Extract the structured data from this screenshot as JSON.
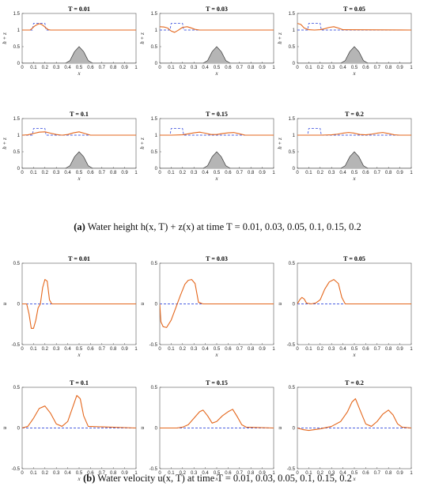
{
  "captions": {
    "a": {
      "label": "(a)",
      "text": "Water height h(x, T) + z(x) at time T = 0.01, 0.03, 0.05, 0.1, 0.15, 0.2"
    },
    "b": {
      "label": "(b)",
      "text": "Water velocity u(x, T) at time T = 0.01, 0.03, 0.05, 0.1, 0.15, 0.2"
    }
  },
  "colors": {
    "solution": "#e4661b",
    "initial": "#4b5fe0",
    "bathymetry_fill": "#b5b5b5",
    "bathymetry_edge": "#333333"
  },
  "chart_data": [
    {
      "type": "line",
      "group": "a",
      "title": "T = 0.01",
      "xlabel": "x",
      "ylabel": "h + z",
      "xlim": [
        0,
        1
      ],
      "ylim": [
        0,
        1.5
      ],
      "xticks": [
        "0",
        "0.1",
        "0.2",
        "0.3",
        "0.4",
        "0.5",
        "0.6",
        "0.7",
        "0.8",
        "0.9",
        "1"
      ],
      "yticks": [
        "0",
        "0.5",
        "1",
        "1.5"
      ],
      "series": [
        {
          "style": "dashed",
          "color": "#4b5fe0",
          "x": [
            0,
            0.09,
            0.1,
            0.2,
            0.21,
            1
          ],
          "y": [
            1,
            1,
            1.2,
            1.2,
            1,
            1
          ]
        },
        {
          "style": "solid",
          "color": "#e4661b",
          "x": [
            0,
            0.07,
            0.09,
            0.11,
            0.13,
            0.15,
            0.17,
            0.19,
            0.21,
            0.23,
            0.25,
            1
          ],
          "y": [
            1,
            1,
            1.06,
            1.12,
            1.16,
            1.19,
            1.17,
            1.12,
            1.06,
            1.01,
            1,
            1
          ]
        },
        {
          "style": "bathymetry",
          "x": [
            0,
            0.38,
            0.42,
            0.46,
            0.5,
            0.54,
            0.58,
            0.62,
            1
          ],
          "y": [
            0,
            0,
            0.08,
            0.35,
            0.5,
            0.35,
            0.08,
            0,
            0
          ]
        }
      ]
    },
    {
      "type": "line",
      "group": "a",
      "title": "T = 0.03",
      "xlabel": "x",
      "ylabel": "h + z",
      "xlim": [
        0,
        1
      ],
      "ylim": [
        0,
        1.5
      ],
      "xticks": [
        "0",
        "0.1",
        "0.2",
        "0.3",
        "0.4",
        "0.5",
        "0.6",
        "0.7",
        "0.8",
        "0.9",
        "1"
      ],
      "yticks": [
        "0",
        "0.5",
        "1",
        "1.5"
      ],
      "series": [
        {
          "style": "dashed",
          "color": "#4b5fe0",
          "x": [
            0,
            0.09,
            0.1,
            0.2,
            0.21,
            1
          ],
          "y": [
            1,
            1,
            1.2,
            1.2,
            1,
            1
          ]
        },
        {
          "style": "solid",
          "color": "#e4661b",
          "x": [
            0,
            0.04,
            0.07,
            0.1,
            0.13,
            0.16,
            0.2,
            0.24,
            0.27,
            0.31,
            0.35,
            1
          ],
          "y": [
            1.1,
            1.09,
            1.06,
            0.97,
            0.93,
            0.99,
            1.08,
            1.1,
            1.07,
            1.02,
            1,
            1
          ]
        },
        {
          "style": "bathymetry",
          "x": [
            0,
            0.38,
            0.42,
            0.46,
            0.5,
            0.54,
            0.58,
            0.62,
            1
          ],
          "y": [
            0,
            0,
            0.08,
            0.35,
            0.5,
            0.35,
            0.08,
            0,
            0
          ]
        }
      ]
    },
    {
      "type": "line",
      "group": "a",
      "title": "T = 0.05",
      "xlabel": "x",
      "ylabel": "h + z",
      "xlim": [
        0,
        1
      ],
      "ylim": [
        0,
        1.5
      ],
      "xticks": [
        "0",
        "0.1",
        "0.2",
        "0.3",
        "0.4",
        "0.5",
        "0.6",
        "0.7",
        "0.8",
        "0.9",
        "1"
      ],
      "yticks": [
        "0",
        "0.5",
        "1",
        "1.5"
      ],
      "series": [
        {
          "style": "dashed",
          "color": "#4b5fe0",
          "x": [
            0,
            0.09,
            0.1,
            0.2,
            0.21,
            1
          ],
          "y": [
            1,
            1,
            1.2,
            1.2,
            1,
            1
          ]
        },
        {
          "style": "solid",
          "color": "#e4661b",
          "x": [
            0,
            0.03,
            0.06,
            0.1,
            0.15,
            0.2,
            0.24,
            0.28,
            0.32,
            0.36,
            0.4,
            1
          ],
          "y": [
            1.2,
            1.17,
            1.06,
            1.01,
            1,
            1.01,
            1.04,
            1.08,
            1.1,
            1.06,
            1.01,
            1
          ]
        },
        {
          "style": "bathymetry",
          "x": [
            0,
            0.38,
            0.42,
            0.46,
            0.5,
            0.54,
            0.58,
            0.62,
            1
          ],
          "y": [
            0,
            0,
            0.08,
            0.35,
            0.5,
            0.35,
            0.08,
            0,
            0
          ]
        }
      ]
    },
    {
      "type": "line",
      "group": "a",
      "title": "T = 0.1",
      "xlabel": "x",
      "ylabel": "h + z",
      "xlim": [
        0,
        1
      ],
      "ylim": [
        0,
        1.5
      ],
      "xticks": [
        "0",
        "0.1",
        "0.2",
        "0.3",
        "0.4",
        "0.5",
        "0.6",
        "0.7",
        "0.8",
        "0.9",
        "1"
      ],
      "yticks": [
        "0",
        "0.5",
        "1",
        "1.5"
      ],
      "series": [
        {
          "style": "dashed",
          "color": "#4b5fe0",
          "x": [
            0,
            0.09,
            0.1,
            0.2,
            0.21,
            1
          ],
          "y": [
            1,
            1,
            1.2,
            1.2,
            1,
            1
          ]
        },
        {
          "style": "solid",
          "color": "#e4661b",
          "x": [
            0,
            0.05,
            0.1,
            0.15,
            0.2,
            0.25,
            0.3,
            0.35,
            0.4,
            0.45,
            0.5,
            0.55,
            0.6,
            1
          ],
          "y": [
            1,
            1.01,
            1.05,
            1.09,
            1.1,
            1.06,
            1.02,
            1,
            1.02,
            1.07,
            1.1,
            1.05,
            1,
            1
          ]
        },
        {
          "style": "bathymetry",
          "x": [
            0,
            0.38,
            0.42,
            0.46,
            0.5,
            0.54,
            0.58,
            0.62,
            1
          ],
          "y": [
            0,
            0,
            0.08,
            0.35,
            0.5,
            0.35,
            0.08,
            0,
            0
          ]
        }
      ]
    },
    {
      "type": "line",
      "group": "a",
      "title": "T = 0.15",
      "xlabel": "x",
      "ylabel": "h + z",
      "xlim": [
        0,
        1
      ],
      "ylim": [
        0,
        1.5
      ],
      "xticks": [
        "0",
        "0.1",
        "0.2",
        "0.3",
        "0.4",
        "0.5",
        "0.6",
        "0.7",
        "0.8",
        "0.9",
        "1"
      ],
      "yticks": [
        "0",
        "0.5",
        "1",
        "1.5"
      ],
      "series": [
        {
          "style": "dashed",
          "color": "#4b5fe0",
          "x": [
            0,
            0.09,
            0.1,
            0.2,
            0.21,
            1
          ],
          "y": [
            1,
            1,
            1.2,
            1.2,
            1,
            1
          ]
        },
        {
          "style": "solid",
          "color": "#e4661b",
          "x": [
            0,
            0.1,
            0.2,
            0.25,
            0.3,
            0.35,
            0.4,
            0.45,
            0.5,
            0.55,
            0.6,
            0.65,
            0.7,
            0.75,
            1
          ],
          "y": [
            1,
            1,
            1.01,
            1.04,
            1.07,
            1.09,
            1.06,
            1.02,
            1.02,
            1.05,
            1.07,
            1.08,
            1.04,
            1,
            1
          ]
        },
        {
          "style": "bathymetry",
          "x": [
            0,
            0.38,
            0.42,
            0.46,
            0.5,
            0.54,
            0.58,
            0.62,
            1
          ],
          "y": [
            0,
            0,
            0.08,
            0.35,
            0.5,
            0.35,
            0.08,
            0,
            0
          ]
        }
      ]
    },
    {
      "type": "line",
      "group": "a",
      "title": "T = 0.2",
      "xlabel": "x",
      "ylabel": "h + z",
      "xlim": [
        0,
        1
      ],
      "ylim": [
        0,
        1.5
      ],
      "xticks": [
        "0",
        "0.1",
        "0.2",
        "0.3",
        "0.4",
        "0.5",
        "0.6",
        "0.7",
        "0.8",
        "0.9",
        "1"
      ],
      "yticks": [
        "0",
        "0.5",
        "1",
        "1.5"
      ],
      "series": [
        {
          "style": "dashed",
          "color": "#4b5fe0",
          "x": [
            0,
            0.09,
            0.1,
            0.2,
            0.21,
            1
          ],
          "y": [
            1,
            1,
            1.2,
            1.2,
            1,
            1
          ]
        },
        {
          "style": "solid",
          "color": "#e4661b",
          "x": [
            0,
            0.2,
            0.3,
            0.35,
            0.4,
            0.45,
            0.5,
            0.55,
            0.6,
            0.65,
            0.7,
            0.75,
            0.8,
            0.85,
            0.9,
            1
          ],
          "y": [
            1,
            1,
            1.01,
            1.03,
            1.06,
            1.08,
            1.06,
            1.02,
            1.01,
            1.03,
            1.06,
            1.08,
            1.05,
            1.01,
            1,
            1
          ]
        },
        {
          "style": "bathymetry",
          "x": [
            0,
            0.38,
            0.42,
            0.46,
            0.5,
            0.54,
            0.58,
            0.62,
            1
          ],
          "y": [
            0,
            0,
            0.08,
            0.35,
            0.5,
            0.35,
            0.08,
            0,
            0
          ]
        }
      ]
    },
    {
      "type": "line",
      "group": "b",
      "title": "T = 0.01",
      "xlabel": "x",
      "ylabel": "u",
      "xlim": [
        0,
        1
      ],
      "ylim": [
        -0.5,
        0.5
      ],
      "xticks": [
        "0",
        "0.1",
        "0.2",
        "0.3",
        "0.4",
        "0.5",
        "0.6",
        "0.7",
        "0.8",
        "0.9",
        "1"
      ],
      "yticks": [
        "-0.5",
        "0",
        "0.5"
      ],
      "series": [
        {
          "style": "dashed",
          "color": "#4b5fe0",
          "x": [
            0,
            1
          ],
          "y": [
            0,
            0
          ]
        },
        {
          "style": "solid",
          "color": "#e4661b",
          "x": [
            0,
            0.04,
            0.06,
            0.08,
            0.1,
            0.12,
            0.14,
            0.16,
            0.18,
            0.2,
            0.22,
            0.24,
            0.26,
            1
          ],
          "y": [
            0,
            0,
            -0.12,
            -0.3,
            -0.3,
            -0.2,
            -0.05,
            0,
            0.2,
            0.3,
            0.28,
            0.05,
            0,
            0
          ]
        }
      ]
    },
    {
      "type": "line",
      "group": "b",
      "title": "T = 0.03",
      "xlabel": "x",
      "ylabel": "u",
      "xlim": [
        0,
        1
      ],
      "ylim": [
        -0.5,
        0.5
      ],
      "xticks": [
        "0",
        "0.1",
        "0.2",
        "0.3",
        "0.4",
        "0.5",
        "0.6",
        "0.7",
        "0.8",
        "0.9",
        "1"
      ],
      "yticks": [
        "-0.5",
        "0",
        "0.5"
      ],
      "series": [
        {
          "style": "dashed",
          "color": "#4b5fe0",
          "x": [
            0,
            1
          ],
          "y": [
            0,
            0
          ]
        },
        {
          "style": "solid",
          "color": "#e4661b",
          "x": [
            0,
            0.01,
            0.03,
            0.06,
            0.1,
            0.14,
            0.18,
            0.22,
            0.25,
            0.28,
            0.31,
            0.34,
            0.38,
            1
          ],
          "y": [
            0,
            -0.22,
            -0.28,
            -0.29,
            -0.2,
            -0.05,
            0.1,
            0.24,
            0.29,
            0.3,
            0.25,
            0.02,
            0,
            0
          ]
        }
      ]
    },
    {
      "type": "line",
      "group": "b",
      "title": "T = 0.05",
      "xlabel": "x",
      "ylabel": "u",
      "xlim": [
        0,
        1
      ],
      "ylim": [
        -0.5,
        0.5
      ],
      "xticks": [
        "0",
        "0.1",
        "0.2",
        "0.3",
        "0.4",
        "0.5",
        "0.6",
        "0.7",
        "0.8",
        "0.9",
        "1"
      ],
      "yticks": [
        "-0.5",
        "0",
        "0.5"
      ],
      "series": [
        {
          "style": "dashed",
          "color": "#4b5fe0",
          "x": [
            0,
            1
          ],
          "y": [
            0,
            0
          ]
        },
        {
          "style": "solid",
          "color": "#e4661b",
          "x": [
            0,
            0.02,
            0.04,
            0.06,
            0.08,
            0.12,
            0.16,
            0.2,
            0.24,
            0.28,
            0.32,
            0.36,
            0.39,
            0.42,
            1
          ],
          "y": [
            0,
            0.05,
            0.08,
            0.06,
            0.01,
            0,
            0.01,
            0.05,
            0.18,
            0.27,
            0.3,
            0.25,
            0.08,
            0,
            0
          ]
        }
      ]
    },
    {
      "type": "line",
      "group": "b",
      "title": "T = 0.1",
      "xlabel": "x",
      "ylabel": "u",
      "xlim": [
        0,
        1
      ],
      "ylim": [
        -0.5,
        0.5
      ],
      "xticks": [
        "0",
        "0.1",
        "0.2",
        "0.3",
        "0.4",
        "0.5",
        "0.6",
        "0.7",
        "0.8",
        "0.9",
        "1"
      ],
      "yticks": [
        "-0.5",
        "0",
        "0.5"
      ],
      "series": [
        {
          "style": "dashed",
          "color": "#4b5fe0",
          "x": [
            0,
            1
          ],
          "y": [
            0,
            0
          ]
        },
        {
          "style": "solid",
          "color": "#e4661b",
          "x": [
            0,
            0.05,
            0.1,
            0.15,
            0.2,
            0.25,
            0.3,
            0.35,
            0.4,
            0.45,
            0.48,
            0.51,
            0.54,
            0.58,
            1
          ],
          "y": [
            0,
            0.02,
            0.12,
            0.24,
            0.27,
            0.18,
            0.05,
            0.02,
            0.08,
            0.28,
            0.4,
            0.36,
            0.15,
            0.02,
            0
          ]
        }
      ]
    },
    {
      "type": "line",
      "group": "b",
      "title": "T = 0.15",
      "xlabel": "x",
      "ylabel": "u",
      "xlim": [
        0,
        1
      ],
      "ylim": [
        -0.5,
        0.5
      ],
      "xticks": [
        "0",
        "0.1",
        "0.2",
        "0.3",
        "0.4",
        "0.5",
        "0.6",
        "0.7",
        "0.8",
        "0.9",
        "1"
      ],
      "yticks": [
        "-0.5",
        "0",
        "0.5"
      ],
      "series": [
        {
          "style": "dashed",
          "color": "#4b5fe0",
          "x": [
            0,
            1
          ],
          "y": [
            0,
            0
          ]
        },
        {
          "style": "solid",
          "color": "#e4661b",
          "x": [
            0,
            0.15,
            0.2,
            0.25,
            0.3,
            0.35,
            0.38,
            0.42,
            0.46,
            0.5,
            0.55,
            0.6,
            0.64,
            0.68,
            0.72,
            0.76,
            1
          ],
          "y": [
            0,
            0,
            0.01,
            0.04,
            0.12,
            0.2,
            0.22,
            0.15,
            0.06,
            0.08,
            0.15,
            0.2,
            0.23,
            0.14,
            0.04,
            0.01,
            0
          ]
        }
      ]
    },
    {
      "type": "line",
      "group": "b",
      "title": "T = 0.2",
      "xlabel": "x",
      "ylabel": "u",
      "xlim": [
        0,
        1
      ],
      "ylim": [
        -0.5,
        0.5
      ],
      "xticks": [
        "0",
        "0.1",
        "0.2",
        "0.3",
        "0.4",
        "0.5",
        "0.6",
        "0.7",
        "0.8",
        "0.9",
        "1"
      ],
      "yticks": [
        "-0.5",
        "0",
        "0.5"
      ],
      "series": [
        {
          "style": "dashed",
          "color": "#4b5fe0",
          "x": [
            0,
            1
          ],
          "y": [
            0,
            0
          ]
        },
        {
          "style": "solid",
          "color": "#e4661b",
          "x": [
            0,
            0.05,
            0.1,
            0.2,
            0.3,
            0.38,
            0.44,
            0.48,
            0.51,
            0.55,
            0.6,
            0.65,
            0.7,
            0.75,
            0.8,
            0.84,
            0.88,
            0.92,
            1
          ],
          "y": [
            0,
            -0.02,
            -0.03,
            -0.01,
            0.02,
            0.08,
            0.2,
            0.32,
            0.36,
            0.22,
            0.05,
            0.02,
            0.08,
            0.17,
            0.22,
            0.16,
            0.05,
            0.01,
            0
          ]
        }
      ]
    }
  ]
}
